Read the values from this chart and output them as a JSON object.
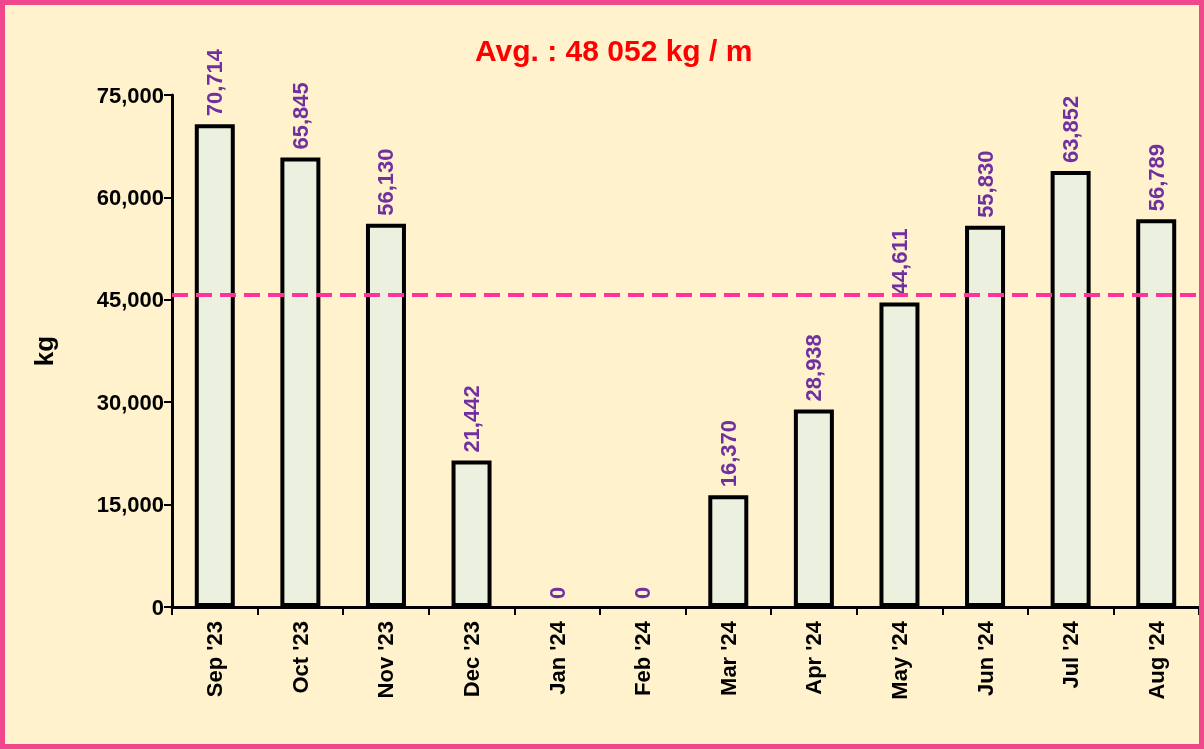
{
  "chart_data": {
    "type": "bar",
    "ylabel": "kg",
    "categories": [
      "Sep '23",
      "Oct '23",
      "Nov '23",
      "Dec '23",
      "Jan '24",
      "Feb '24",
      "Mar '24",
      "Apr '24",
      "May '24",
      "Jun '24",
      "Jul '24",
      "Aug '24"
    ],
    "values": [
      70714,
      65845,
      56130,
      21442,
      0,
      0,
      16370,
      28938,
      44611,
      55830,
      63852,
      56789
    ],
    "value_labels": [
      "70,714",
      "65,845",
      "56,130",
      "21,442",
      "0",
      "0",
      "16,370",
      "28,938",
      "44,611",
      "55,830",
      "63,852",
      "56,789"
    ],
    "color": "#ebf1de",
    "ylim": [
      0,
      75000
    ],
    "yticks": [
      0,
      {
        "value": 15000,
        "label": "15,000"
      },
      {
        "value": 30000,
        "label": "30,000"
      },
      {
        "value": 45000,
        "label": "45,000"
      },
      {
        "value": 60000,
        "label": "60,000"
      },
      {
        "value": 75000,
        "label": "75,000"
      }
    ],
    "grid": false,
    "ref_lines": [
      {
        "axis": "y",
        "value": 45700,
        "color": "#ff3399",
        "line_style": "dashed"
      }
    ],
    "annotations": [
      "Avg. : 48 052 kg / m"
    ]
  }
}
